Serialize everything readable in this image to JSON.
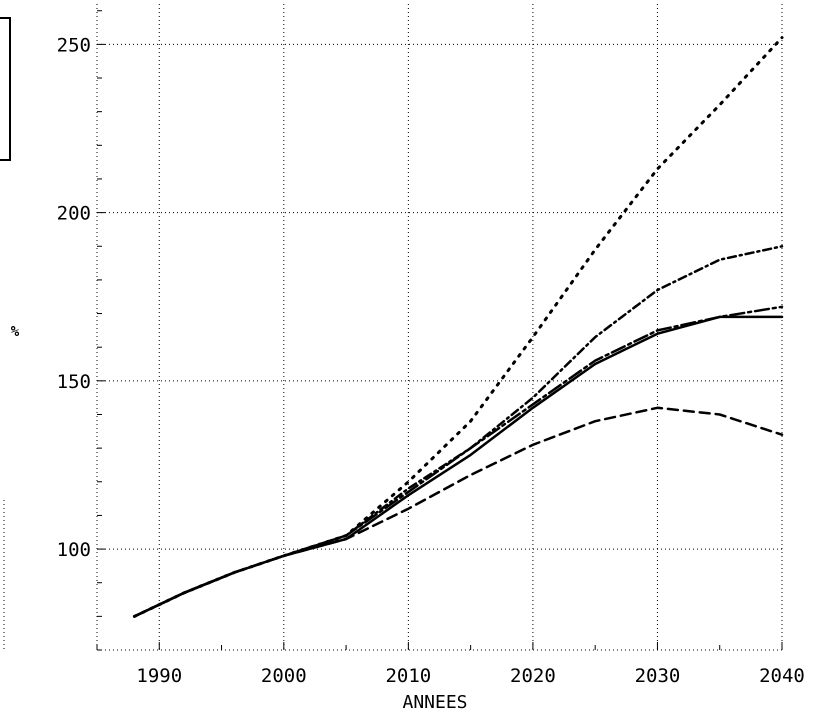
{
  "chart_data": {
    "type": "line",
    "title": "",
    "xlabel": "ANNEES",
    "ylabel": "%",
    "xlim": [
      1985,
      2040
    ],
    "ylim": [
      70,
      262
    ],
    "x_ticks": [
      1990,
      2000,
      2010,
      2020,
      2030,
      2040
    ],
    "y_ticks": [
      100,
      150,
      200,
      250
    ],
    "grid": true,
    "series": [
      {
        "style": "dotted",
        "x": [
          1988,
          1992,
          1996,
          2000,
          2005,
          2010,
          2015,
          2020,
          2025,
          2030,
          2035,
          2040
        ],
        "values": [
          80,
          87,
          93,
          98,
          104,
          120,
          138,
          163,
          189,
          213,
          232,
          252
        ]
      },
      {
        "style": "dash-dot",
        "x": [
          1988,
          1992,
          1996,
          2000,
          2005,
          2010,
          2015,
          2020,
          2025,
          2030,
          2035,
          2040
        ],
        "values": [
          80,
          87,
          93,
          98,
          104,
          118,
          130,
          145,
          163,
          177,
          186,
          190
        ]
      },
      {
        "style": "dash-dot-long",
        "x": [
          1988,
          1992,
          1996,
          2000,
          2005,
          2010,
          2015,
          2020,
          2025,
          2030,
          2035,
          2040
        ],
        "values": [
          80,
          87,
          93,
          98,
          104,
          117,
          130,
          143,
          156,
          165,
          169,
          172
        ]
      },
      {
        "style": "solid",
        "x": [
          1988,
          1992,
          1996,
          2000,
          2005,
          2010,
          2015,
          2020,
          2025,
          2030,
          2035,
          2040
        ],
        "values": [
          80,
          87,
          93,
          98,
          103,
          116,
          128,
          142,
          155,
          164,
          169,
          169
        ]
      },
      {
        "style": "dashed",
        "x": [
          1988,
          1992,
          1996,
          2000,
          2005,
          2010,
          2015,
          2020,
          2025,
          2030,
          2035,
          2040
        ],
        "values": [
          80,
          87,
          93,
          98,
          103,
          112,
          122,
          131,
          138,
          142,
          140,
          134
        ]
      }
    ]
  }
}
